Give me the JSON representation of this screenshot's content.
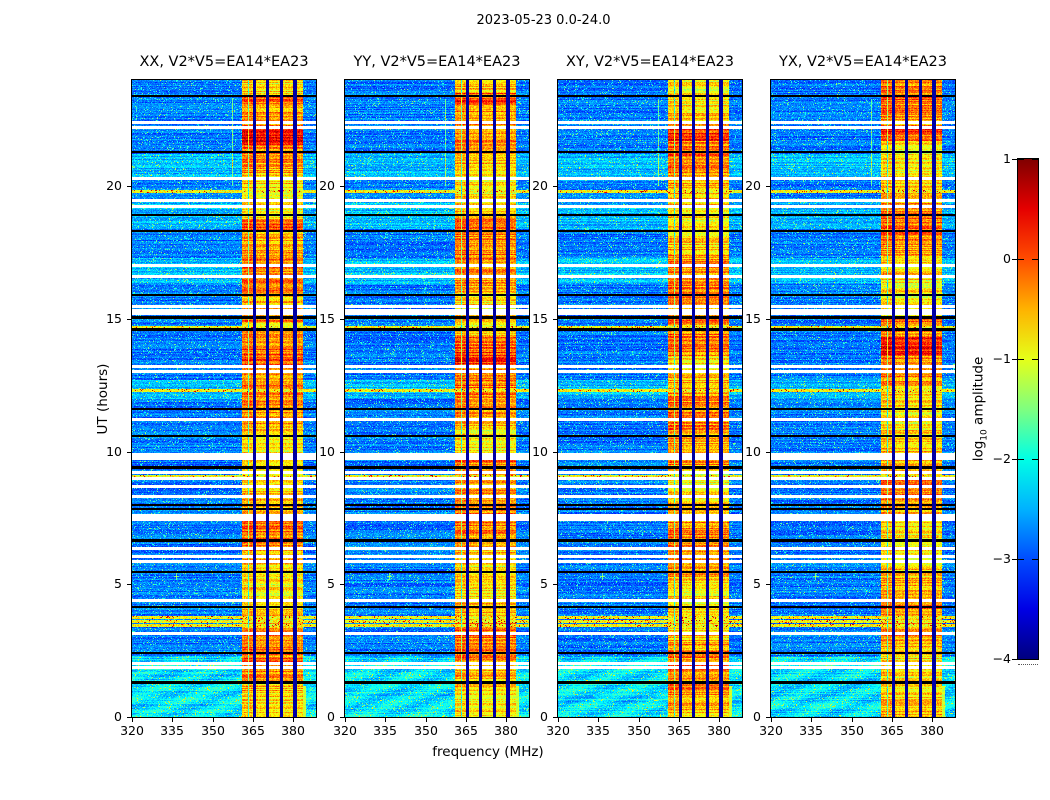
{
  "chart_data": {
    "type": "heatmap",
    "title": "2023-05-23 0.0-24.0",
    "xlabel": "frequency (MHz)",
    "ylabel": "UT (hours)",
    "x_range": [
      320,
      388.4
    ],
    "y_range": [
      0,
      24
    ],
    "x_ticks": [
      320,
      335,
      350,
      365,
      380
    ],
    "y_ticks": [
      0,
      5,
      10,
      15,
      20
    ],
    "colormap": "jet",
    "value_range": [
      -4,
      1
    ],
    "grid": false,
    "colorbar": {
      "label_prefix": "log",
      "label_sub": "10",
      "label_suffix": " amplitude",
      "ticks": [
        1,
        0,
        -1,
        -2,
        -3,
        -4
      ]
    },
    "panels": [
      {
        "title": "XX, V2*V5=EA14*EA23",
        "seed": 11,
        "hot_rows": [
          [
            13.25,
            14.55
          ],
          [
            14.85,
            15.15
          ],
          [
            18.35,
            18.75
          ],
          [
            21.55,
            22.15
          ],
          [
            23.05,
            23.45
          ]
        ]
      },
      {
        "title": "YY, V2*V5=EA14*EA23",
        "seed": 23,
        "hot_rows": [
          [
            9.5,
            9.82
          ],
          [
            13.3,
            14.4
          ],
          [
            18.4,
            18.8
          ],
          [
            23.05,
            23.5
          ]
        ]
      },
      {
        "title": "XY, V2*V5=EA14*EA23",
        "seed": 37,
        "hot_rows": [
          [
            9.5,
            9.8
          ],
          [
            13.6,
            14.45
          ],
          [
            14.85,
            15.1
          ],
          [
            21.7,
            22.2
          ]
        ]
      },
      {
        "title": "YX, V2*V5=EA14*EA23",
        "seed": 53,
        "hot_rows": [
          [
            13.6,
            14.3
          ],
          [
            14.85,
            15.1
          ],
          [
            21.7,
            22.15
          ]
        ]
      }
    ],
    "features": {
      "background_level": -3.05,
      "rfi_band": {
        "freq_start": 361,
        "freq_end": 383.5,
        "level": -0.55,
        "separators": [
          365.5,
          370.5,
          375.5,
          380.6
        ],
        "thin_lines": [
          363.4
        ]
      },
      "white_gap_hours": [
        22.4,
        22.2,
        20.3,
        19.45,
        19.25,
        17.0,
        16.6,
        15.45,
        15.3,
        15.2,
        13.2,
        13.0,
        11.2,
        9.9,
        9.82,
        9.75,
        9.2,
        9.0,
        8.7,
        8.3,
        7.6,
        7.52,
        7.45,
        6.35,
        6.05,
        5.85,
        4.4,
        3.15,
        2.0,
        1.85
      ],
      "black_line_hours": [
        23.4,
        21.3,
        18.9,
        18.3,
        15.9,
        15.05,
        14.6,
        11.6,
        10.6,
        9.4,
        8.0,
        7.85,
        6.65,
        5.45,
        4.15,
        2.4,
        1.3
      ],
      "bright_line_hours": [
        19.8,
        14.7,
        12.3,
        9.05,
        3.75,
        3.6,
        3.45
      ],
      "cyan_row_intervals": [
        [
          0,
          2.25
        ],
        [
          12.0,
          12.7
        ],
        [
          16.3,
          17.3
        ],
        [
          18.4,
          19.4
        ],
        [
          20.3,
          21.2
        ]
      ],
      "bottom_blob": {
        "hours": [
          0,
          1.15
        ],
        "freq": [
          363.5,
          384.5
        ],
        "level": -1.15
      },
      "red_streak": {
        "hours": [
          0,
          0.85
        ],
        "freq": [
          370.0,
          371.0
        ],
        "level": 0.35
      },
      "marker": {
        "freq": 336.4,
        "hour": 5.3
      },
      "vline": {
        "freq": 357.2,
        "hours": [
          20.0,
          23.3
        ]
      }
    }
  }
}
